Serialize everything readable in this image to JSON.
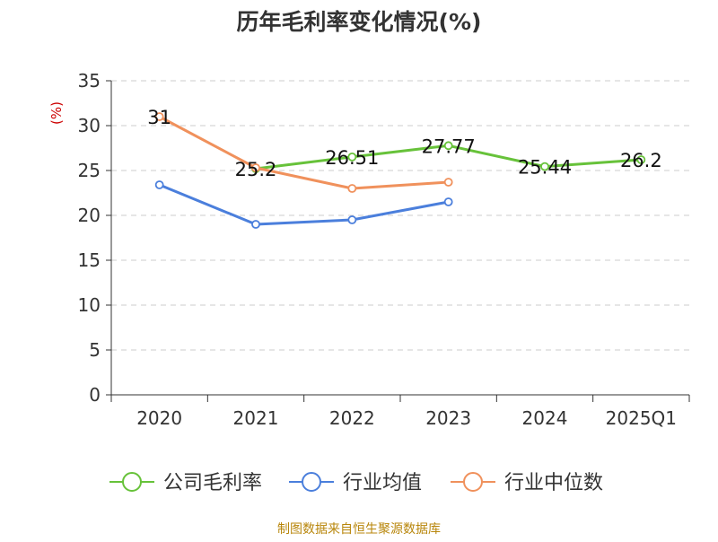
{
  "chart_data": {
    "type": "line",
    "title": "历年毛利率变化情况(%)",
    "ylabel": "(%)",
    "xlabel": "",
    "categories": [
      "2020",
      "2021",
      "2022",
      "2023",
      "2024",
      "2025Q1"
    ],
    "ylim": [
      0,
      35
    ],
    "yticks": [
      0,
      5,
      10,
      15,
      20,
      25,
      30,
      35
    ],
    "grid": true,
    "legend_position": "bottom",
    "series": [
      {
        "name": "公司毛利率",
        "color": "#67c23a",
        "values": [
          null,
          25.2,
          26.51,
          27.77,
          25.44,
          26.2
        ],
        "labels": [
          "",
          "25.2",
          "26.51",
          "27.77",
          "25.44",
          "26.2"
        ]
      },
      {
        "name": "行业均值",
        "color": "#4b7fdc",
        "values": [
          23.4,
          19.0,
          19.5,
          21.5,
          null,
          null
        ],
        "labels": [
          "",
          "",
          "",
          "",
          "",
          ""
        ]
      },
      {
        "name": "行业中位数",
        "color": "#f0915c",
        "values": [
          31.0,
          25.3,
          23.0,
          23.7,
          null,
          null
        ],
        "labels": [
          "31",
          "",
          "",
          "",
          "",
          ""
        ]
      }
    ],
    "footer": "制图数据来自恒生聚源数据库"
  },
  "colors": {
    "ylabel": "#cc0000",
    "footer": "#b8860b",
    "axis": "#333333",
    "grid": "#cccccc"
  }
}
